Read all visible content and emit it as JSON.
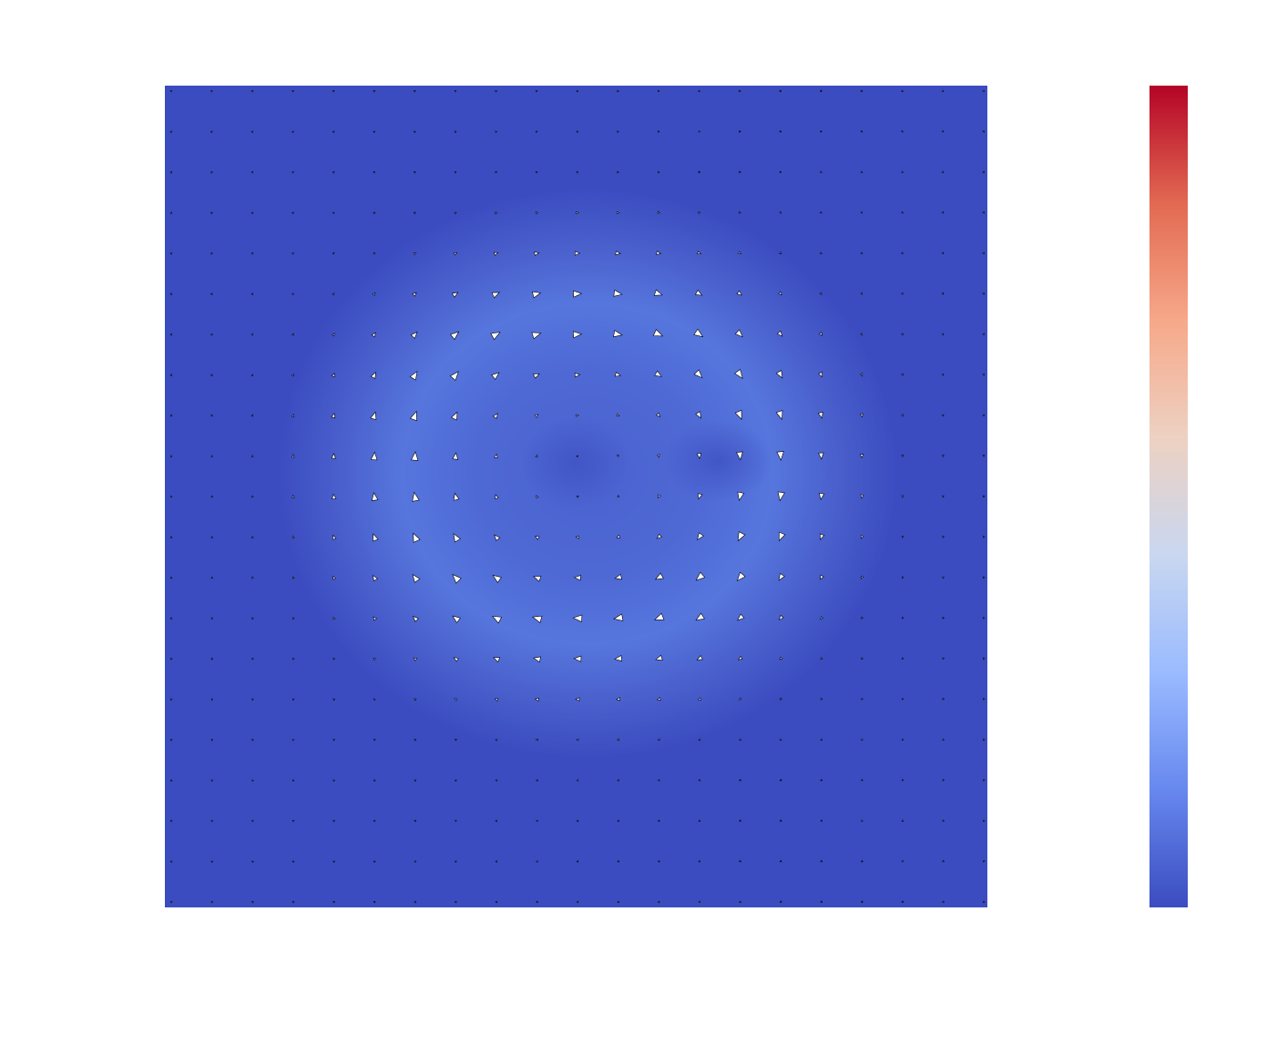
{
  "chart_data": {
    "type": "quiver",
    "colormap": [
      "#3b4cc0",
      "#6788ee",
      "#9abbff",
      "#c9d7f0",
      "#edd1c2",
      "#f7a889",
      "#e26952",
      "#b40426"
    ]
  }
}
